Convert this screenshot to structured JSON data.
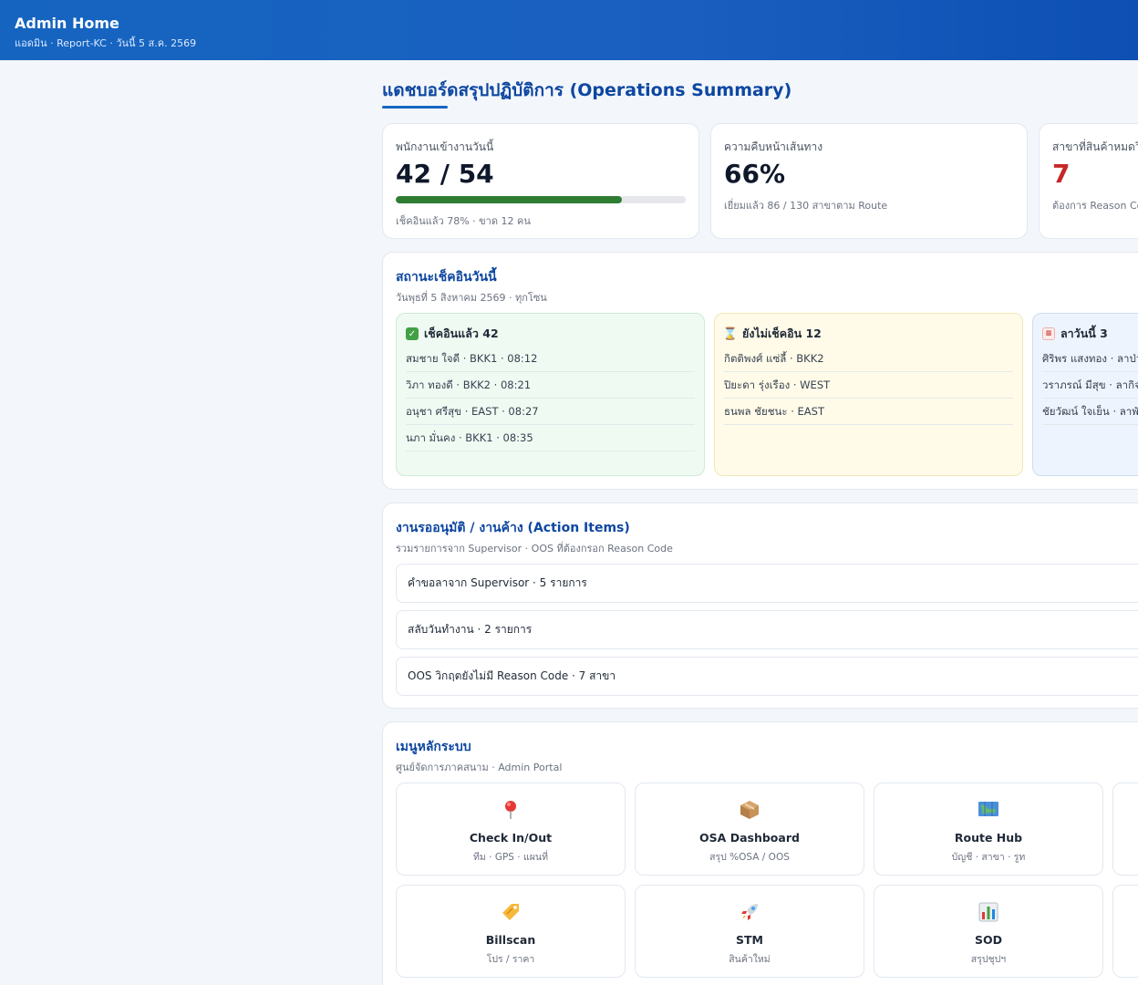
{
  "header": {
    "title": "Admin Home",
    "subtitle": "แอดมิน · Report-KC · วันนี้ 5 ส.ค. 2569"
  },
  "page": {
    "title": "แดชบอร์ดสรุปปฏิบัติการ (Operations Summary)"
  },
  "kpis": [
    {
      "label": "พนักงานเข้างานวันนี้",
      "value": "42 / 54",
      "progress": 0.78,
      "sub": "เช็คอินแล้ว 78% · ขาด 12 คน",
      "color": "#0f172a"
    },
    {
      "label": "ความคืบหน้าเส้นทาง",
      "value": "66%",
      "sub": "เยี่ยมแล้ว 86 / 130 สาขาตาม Route",
      "color": "#0f172a"
    },
    {
      "label": "สาขาที่สินค้าหมดวิก",
      "value": "7",
      "sub": "ต้องการ Reason Co",
      "color": "#c62828"
    }
  ],
  "checkin": {
    "title": "สถานะเช็คอินวันนี้",
    "subtitle": "วันพุธที่ 5 สิงหาคม 2569 · ทุกโซน",
    "checked": {
      "title": "เช็คอินแล้ว 42",
      "icon": "check-box-icon",
      "items": [
        "สมชาย ใจดี · BKK1 · 08:12",
        "วิภา ทองดี · BKK2 · 08:21",
        "อนุชา ศรีสุข · EAST · 08:27",
        "นภา มั่นคง · BKK1 · 08:35"
      ]
    },
    "pending": {
      "title": "ยังไม่เช็คอิน 12",
      "icon": "hourglass-icon",
      "items": [
        "กิตติพงศ์ แซ่ลี้ · BKK2",
        "ปิยะดา รุ่งเรือง · WEST",
        "ธนพล ชัยชนะ · EAST"
      ]
    },
    "leave": {
      "title": "ลาวันนี้ 3",
      "icon": "memo-icon",
      "items": [
        "ศิริพร แสงทอง · ลาป่ว",
        "วราภรณ์ มีสุข · ลากิจ",
        "ชัยวัฒน์ ใจเย็น · ลาพัก"
      ]
    }
  },
  "actions": {
    "title": "งานรออนุมัติ / งานค้าง (Action Items)",
    "subtitle": "รวมรายการจาก Supervisor · OOS ที่ต้องกรอก Reason Code",
    "items": [
      "คำขอลาจาก Supervisor · 5 รายการ",
      "สลับวันทำงาน · 2 รายการ",
      "OOS วิกฤตยังไม่มี Reason Code · 7 สาขา"
    ]
  },
  "menu": {
    "title": "เมนูหลักระบบ",
    "subtitle": "ศูนย์จัดการภาคสนาม · Admin Portal",
    "tiles": [
      {
        "name": "Check In/Out",
        "sub": "ทีม · GPS · แผนที่",
        "icon": "pushpin-icon"
      },
      {
        "name": "OSA Dashboard",
        "sub": "สรุป %OSA / OOS",
        "icon": "package-icon"
      },
      {
        "name": "Route Hub",
        "sub": "บัญชี · สาขา · รูท",
        "icon": "map-icon"
      },
      {
        "name": "Billscan",
        "sub": "โปร / ราคา",
        "icon": "tag-icon"
      },
      {
        "name": "STM",
        "sub": "สินค้าใหม่",
        "icon": "rocket-icon"
      },
      {
        "name": "SOD",
        "sub": "สรุปชุปฯ",
        "icon": "bar-chart-icon"
      }
    ]
  }
}
